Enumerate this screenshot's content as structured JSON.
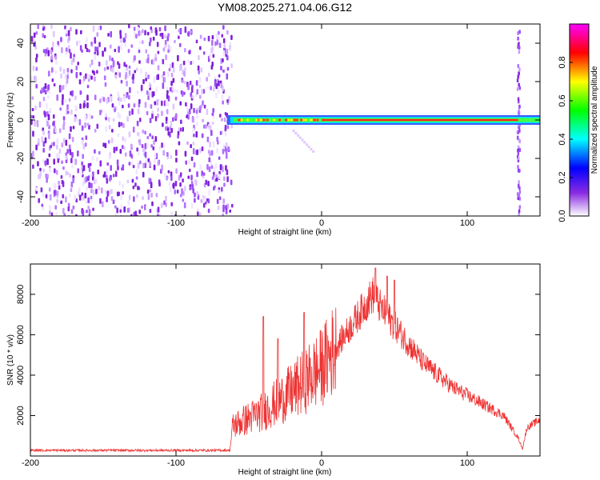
{
  "title": "YM08.2025.271.04.06.G12",
  "chart_data": [
    {
      "type": "heatmap",
      "name": "spectrogram",
      "xlabel": "Height of straight line (km)",
      "ylabel": "Frequency (Hz)",
      "xlim": [
        -200,
        150
      ],
      "ylim": [
        -50,
        50
      ],
      "xticks": [
        -200,
        -100,
        0,
        100
      ],
      "yticks": [
        -40,
        -20,
        0,
        20,
        40
      ],
      "noise_region_x": [
        -200,
        -62
      ],
      "tone": {
        "frequency_hz": 0,
        "x_start": -65,
        "x_end": 150
      },
      "streak_x": 135,
      "colorbar": {
        "label": "Normalized spectral amplitude",
        "range": [
          0,
          1
        ],
        "ticks": [
          "0.0",
          "0.2",
          "0.4",
          "0.6",
          "0.8"
        ]
      }
    },
    {
      "type": "line",
      "name": "snr",
      "xlabel": "Height of straight line (km)",
      "ylabel": "SNR (10 * v/v)",
      "xlim": [
        -200,
        150
      ],
      "ylim": [
        0,
        9500
      ],
      "xticks": [
        -200,
        -100,
        0,
        100
      ],
      "yticks": [
        2000,
        4000,
        6000,
        8000
      ],
      "line_color": "#ee3333",
      "trend": [
        {
          "x": -200,
          "y": 280
        },
        {
          "x": -63,
          "y": 280
        },
        {
          "x": -61,
          "y": 1500
        },
        {
          "x": -40,
          "y": 2200
        },
        {
          "x": -20,
          "y": 3200
        },
        {
          "x": 0,
          "y": 4400
        },
        {
          "x": 20,
          "y": 6400
        },
        {
          "x": 35,
          "y": 8000
        },
        {
          "x": 40,
          "y": 7400
        },
        {
          "x": 55,
          "y": 6000
        },
        {
          "x": 70,
          "y": 4600
        },
        {
          "x": 90,
          "y": 3400
        },
        {
          "x": 110,
          "y": 2600
        },
        {
          "x": 125,
          "y": 2000
        },
        {
          "x": 135,
          "y": 900
        },
        {
          "x": 138,
          "y": 350
        },
        {
          "x": 141,
          "y": 1400
        },
        {
          "x": 150,
          "y": 1800
        }
      ],
      "spikes": [
        {
          "x": -40,
          "y": 6900
        },
        {
          "x": -30,
          "y": 5800
        },
        {
          "x": -12,
          "y": 7100
        },
        {
          "x": 37,
          "y": 9300
        },
        {
          "x": 45,
          "y": 8900
        },
        {
          "x": 50,
          "y": 8700
        }
      ]
    }
  ]
}
